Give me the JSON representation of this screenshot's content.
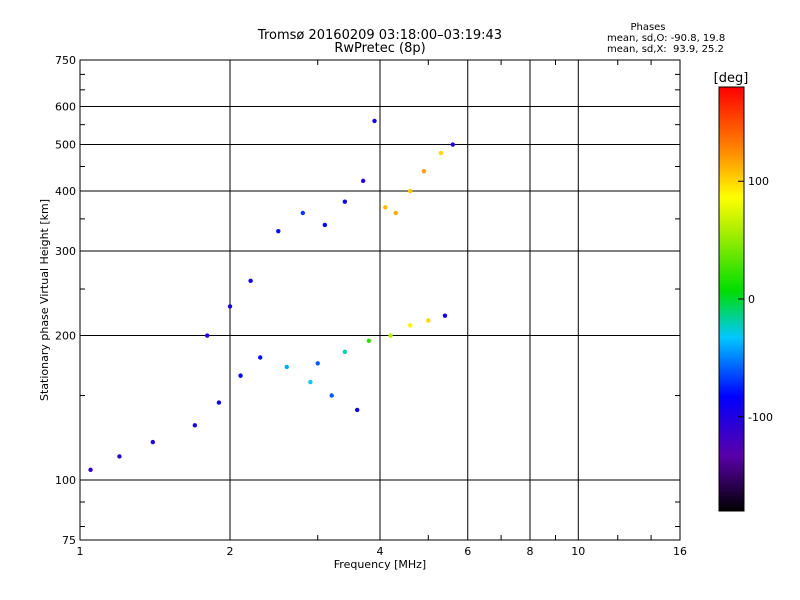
{
  "chart_data": {
    "type": "scatter",
    "title": "Tromsø 20160209 03:18:00–03:19:43",
    "subtitle": "RwPretec (8p)",
    "xlabel": "Frequency [MHz]",
    "ylabel": "Stationary phase Virtual Height [km]",
    "x_scale": "log",
    "y_scale": "log",
    "xlim": [
      1,
      16
    ],
    "ylim": [
      75,
      750
    ],
    "x_ticks": [
      1,
      2,
      4,
      6,
      8,
      10,
      16
    ],
    "x_tick_labels": [
      "1",
      "2",
      "4",
      "6",
      "8",
      "10",
      "16"
    ],
    "y_ticks": [
      75,
      100,
      200,
      300,
      400,
      500,
      600,
      750
    ],
    "y_tick_labels": [
      "75",
      "100",
      "200",
      "300",
      "400",
      "500",
      "600",
      "750"
    ],
    "grid": true,
    "phase_info": {
      "header": "Phases",
      "line_o": "mean, sd,O: -90.8, 19.8",
      "line_x": "mean, sd,X:  93.9, 25.2"
    },
    "colorbar": {
      "label": "[deg]",
      "range": [
        -180,
        180
      ],
      "ticks": [
        100,
        0,
        -100
      ],
      "tick_labels": [
        "100",
        "0",
        "-100"
      ]
    },
    "series": [
      {
        "f": [
          1.05,
          1.2,
          1.4,
          1.7,
          1.9,
          2.1,
          2.3,
          2.6,
          2.9,
          3.2,
          3.6
        ],
        "h": [
          105,
          112,
          120,
          130,
          145,
          165,
          180,
          172,
          160,
          150,
          140
        ],
        "phase": [
          -110,
          -105,
          -100,
          -95,
          -90,
          -85,
          -80,
          -40,
          -30,
          -60,
          -90
        ]
      },
      {
        "f": [
          1.8,
          2.0,
          2.2,
          2.5,
          2.8,
          3.1,
          3.4,
          3.7,
          3.9
        ],
        "h": [
          200,
          230,
          260,
          330,
          360,
          340,
          380,
          420,
          560
        ],
        "phase": [
          -100,
          -95,
          -90,
          -80,
          -70,
          -85,
          -90,
          -100,
          -95
        ]
      },
      {
        "f": [
          4.1,
          4.3,
          4.6,
          4.9,
          5.3,
          5.6
        ],
        "h": [
          370,
          360,
          400,
          440,
          480,
          500
        ],
        "phase": [
          110,
          115,
          105,
          120,
          100,
          -100
        ]
      },
      {
        "f": [
          3.0,
          3.4,
          3.8,
          4.2,
          4.6,
          5.0,
          5.4
        ],
        "h": [
          175,
          185,
          195,
          200,
          210,
          215,
          220
        ],
        "phase": [
          -60,
          -20,
          20,
          60,
          90,
          100,
          -90
        ]
      }
    ]
  }
}
